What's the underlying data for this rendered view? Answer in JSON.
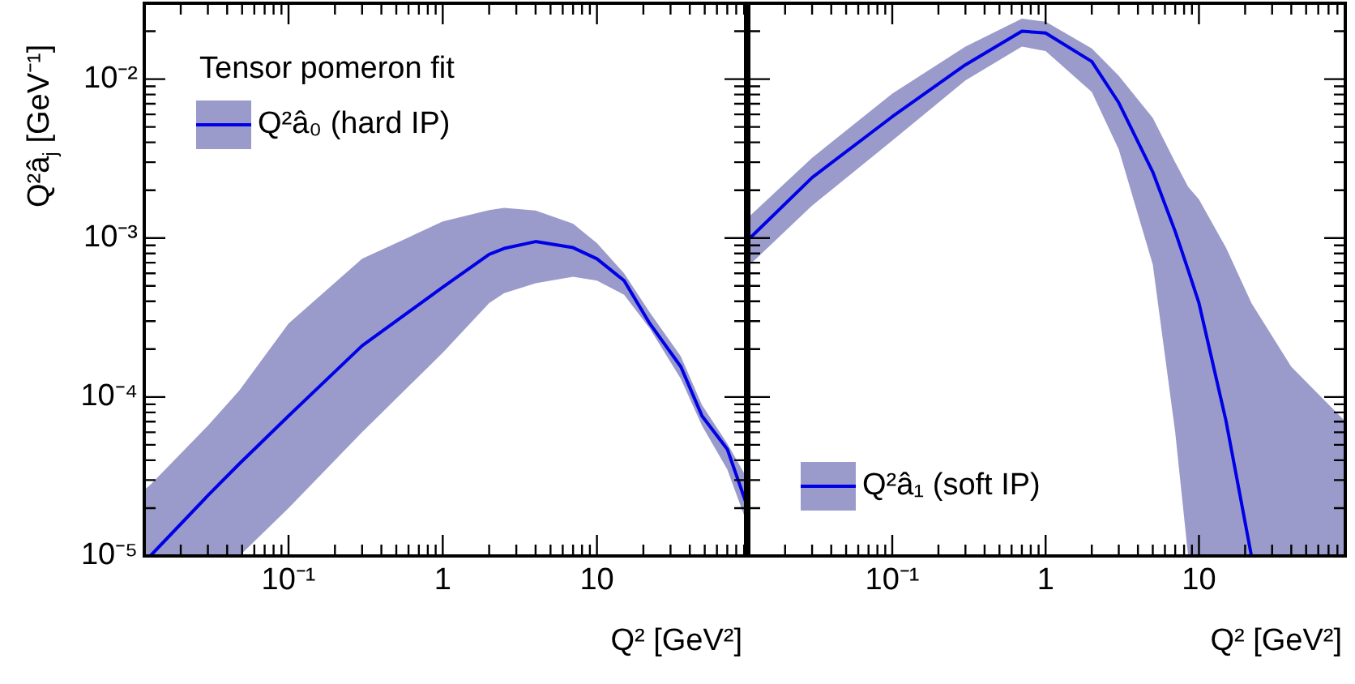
{
  "chart_data": [
    {
      "type": "line",
      "xlabel": "Q² [GeV²]",
      "ylabel": "Q²â$_{j}$ [GeV⁻¹]",
      "legend_title": "Tensor pomeron fit",
      "legend": "top left",
      "log": "xy",
      "grid": false,
      "marker": "none",
      "line_style": "solid",
      "xlim": [
        0.0116,
        92
      ],
      "ylim": [
        1e-05,
        0.03
      ],
      "xticks": [
        {
          "value": 0.02,
          "label": null
        },
        {
          "value": 0.03,
          "label": null
        },
        {
          "value": 0.04,
          "label": null
        },
        {
          "value": 0.05,
          "label": null
        },
        {
          "value": 0.06,
          "label": null
        },
        {
          "value": 0.07,
          "label": null
        },
        {
          "value": 0.08,
          "label": null
        },
        {
          "value": 0.09,
          "label": null
        },
        {
          "value": 0.1,
          "label": "10⁻¹"
        },
        {
          "value": 0.2,
          "label": null
        },
        {
          "value": 0.3,
          "label": null
        },
        {
          "value": 0.4,
          "label": null
        },
        {
          "value": 0.5,
          "label": null
        },
        {
          "value": 0.6,
          "label": null
        },
        {
          "value": 0.7,
          "label": null
        },
        {
          "value": 0.8,
          "label": null
        },
        {
          "value": 0.9,
          "label": null
        },
        {
          "value": 1,
          "label": "1"
        },
        {
          "value": 2,
          "label": null
        },
        {
          "value": 3,
          "label": null
        },
        {
          "value": 4,
          "label": null
        },
        {
          "value": 5,
          "label": null
        },
        {
          "value": 6,
          "label": null
        },
        {
          "value": 7,
          "label": null
        },
        {
          "value": 8,
          "label": null
        },
        {
          "value": 9,
          "label": null
        },
        {
          "value": 10,
          "label": "10"
        },
        {
          "value": 20,
          "label": null
        },
        {
          "value": 30,
          "label": null
        },
        {
          "value": 40,
          "label": null
        },
        {
          "value": 50,
          "label": null
        },
        {
          "value": 60,
          "label": null
        },
        {
          "value": 70,
          "label": null
        },
        {
          "value": 80,
          "label": null
        },
        {
          "value": 90,
          "label": null
        }
      ],
      "yticks": [
        {
          "value": 1e-05,
          "label": "10⁻⁵"
        },
        {
          "value": 2e-05,
          "label": null
        },
        {
          "value": 3e-05,
          "label": null
        },
        {
          "value": 4e-05,
          "label": null
        },
        {
          "value": 5e-05,
          "label": null
        },
        {
          "value": 6e-05,
          "label": null
        },
        {
          "value": 7e-05,
          "label": null
        },
        {
          "value": 8e-05,
          "label": null
        },
        {
          "value": 9e-05,
          "label": null
        },
        {
          "value": 0.0001,
          "label": "10⁻⁴"
        },
        {
          "value": 0.0002,
          "label": null
        },
        {
          "value": 0.0003,
          "label": null
        },
        {
          "value": 0.0004,
          "label": null
        },
        {
          "value": 0.0005,
          "label": null
        },
        {
          "value": 0.0006,
          "label": null
        },
        {
          "value": 0.0007,
          "label": null
        },
        {
          "value": 0.0008,
          "label": null
        },
        {
          "value": 0.0009,
          "label": null
        },
        {
          "value": 0.001,
          "label": "10⁻³"
        },
        {
          "value": 0.002,
          "label": null
        },
        {
          "value": 0.003,
          "label": null
        },
        {
          "value": 0.004,
          "label": null
        },
        {
          "value": 0.005,
          "label": null
        },
        {
          "value": 0.006,
          "label": null
        },
        {
          "value": 0.007,
          "label": null
        },
        {
          "value": 0.008,
          "label": null
        },
        {
          "value": 0.009,
          "label": null
        },
        {
          "value": 0.01,
          "label": "10⁻²"
        },
        {
          "value": 0.02,
          "label": null
        },
        {
          "value": 0.03,
          "label": null
        }
      ],
      "x": [
        0.0116,
        0.0127,
        0.03,
        0.048,
        0.1,
        0.3,
        1,
        2,
        2.5,
        4,
        7,
        10,
        15,
        22,
        35,
        48,
        70,
        92
      ],
      "series": [
        {
          "name": "Q²â₀ (hard IP)",
          "color": "#0000e6",
          "values": [
            null,
            1e-05,
            2.4e-05,
            3.8e-05,
            7.6e-05,
            0.00021,
            0.00049,
            0.00079,
            0.00086,
            0.00095,
            0.00087,
            0.00074,
            0.00054,
            0.00029,
            0.000155,
            7.6e-05,
            4.7e-05,
            2.2e-05
          ],
          "upper": [
            2.6e-05,
            2.8e-05,
            6.6e-05,
            0.00011,
            0.00029,
            0.00074,
            0.00127,
            0.0015,
            0.00155,
            0.00149,
            0.00123,
            0.00093,
            0.0006,
            0.00034,
            0.00018,
            8.9e-05,
            5.1e-05,
            3.2e-05
          ],
          "lower": [
            1e-05,
            1e-05,
            1e-05,
            1e-05,
            2e-05,
            6e-05,
            0.00019,
            0.00039,
            0.00045,
            0.00052,
            0.00057,
            0.00054,
            0.00044,
            0.00027,
            0.00013,
            6.6e-05,
            3.5e-05,
            1.7e-05
          ]
        }
      ]
    },
    {
      "type": "line",
      "xlabel": "Q² [GeV²]",
      "legend": "bottom left",
      "log": "xy",
      "grid": false,
      "marker": "none",
      "line_style": "solid",
      "tick_labels": "x",
      "xlim": [
        0.0116,
        90
      ],
      "ylim": [
        1e-05,
        0.03
      ],
      "xticks": [
        {
          "value": 0.02,
          "label": null
        },
        {
          "value": 0.03,
          "label": null
        },
        {
          "value": 0.04,
          "label": null
        },
        {
          "value": 0.05,
          "label": null
        },
        {
          "value": 0.06,
          "label": null
        },
        {
          "value": 0.07,
          "label": null
        },
        {
          "value": 0.08,
          "label": null
        },
        {
          "value": 0.09,
          "label": null
        },
        {
          "value": 0.1,
          "label": "10⁻¹"
        },
        {
          "value": 0.2,
          "label": null
        },
        {
          "value": 0.3,
          "label": null
        },
        {
          "value": 0.4,
          "label": null
        },
        {
          "value": 0.5,
          "label": null
        },
        {
          "value": 0.6,
          "label": null
        },
        {
          "value": 0.7,
          "label": null
        },
        {
          "value": 0.8,
          "label": null
        },
        {
          "value": 0.9,
          "label": null
        },
        {
          "value": 1,
          "label": "1"
        },
        {
          "value": 2,
          "label": null
        },
        {
          "value": 3,
          "label": null
        },
        {
          "value": 4,
          "label": null
        },
        {
          "value": 5,
          "label": null
        },
        {
          "value": 6,
          "label": null
        },
        {
          "value": 7,
          "label": null
        },
        {
          "value": 8,
          "label": null
        },
        {
          "value": 9,
          "label": null
        },
        {
          "value": 10,
          "label": "10"
        },
        {
          "value": 20,
          "label": null
        },
        {
          "value": 30,
          "label": null
        },
        {
          "value": 40,
          "label": null
        },
        {
          "value": 50,
          "label": null
        },
        {
          "value": 60,
          "label": null
        },
        {
          "value": 70,
          "label": null
        },
        {
          "value": 80,
          "label": null
        }
      ],
      "yticks": [
        {
          "value": 1e-05,
          "label": null
        },
        {
          "value": 2e-05,
          "label": null
        },
        {
          "value": 3e-05,
          "label": null
        },
        {
          "value": 4e-05,
          "label": null
        },
        {
          "value": 5e-05,
          "label": null
        },
        {
          "value": 6e-05,
          "label": null
        },
        {
          "value": 7e-05,
          "label": null
        },
        {
          "value": 8e-05,
          "label": null
        },
        {
          "value": 9e-05,
          "label": null
        },
        {
          "value": 0.0001,
          "label": null
        },
        {
          "value": 0.0002,
          "label": null
        },
        {
          "value": 0.0003,
          "label": null
        },
        {
          "value": 0.0004,
          "label": null
        },
        {
          "value": 0.0005,
          "label": null
        },
        {
          "value": 0.0006,
          "label": null
        },
        {
          "value": 0.0007,
          "label": null
        },
        {
          "value": 0.0008,
          "label": null
        },
        {
          "value": 0.0009,
          "label": null
        },
        {
          "value": 0.001,
          "label": null
        },
        {
          "value": 0.002,
          "label": null
        },
        {
          "value": 0.003,
          "label": null
        },
        {
          "value": 0.004,
          "label": null
        },
        {
          "value": 0.005,
          "label": null
        },
        {
          "value": 0.006,
          "label": null
        },
        {
          "value": 0.007,
          "label": null
        },
        {
          "value": 0.008,
          "label": null
        },
        {
          "value": 0.009,
          "label": null
        },
        {
          "value": 0.01,
          "label": null
        },
        {
          "value": 0.02,
          "label": null
        },
        {
          "value": 0.03,
          "label": null
        }
      ],
      "x": [
        0.0118,
        0.03,
        0.1,
        0.3,
        0.7,
        1,
        2,
        3,
        5,
        7,
        8.5,
        10,
        15,
        22,
        40,
        89
      ],
      "series": [
        {
          "name": "Q²â₁ (soft IP)",
          "color": "#0000e6",
          "values": [
            0.001,
            0.0024,
            0.0058,
            0.0123,
            0.02,
            0.0195,
            0.0129,
            0.0071,
            0.0026,
            0.0011,
            0.00063,
            0.00039,
            7.1e-05,
            1e-05,
            null,
            null
          ],
          "upper": [
            0.00138,
            0.0032,
            0.0081,
            0.016,
            0.024,
            0.023,
            0.0156,
            0.0105,
            0.0057,
            0.003,
            0.0021,
            0.00175,
            0.00087,
            0.00039,
            0.000155,
            7.1e-05
          ],
          "lower": [
            0.00068,
            0.0016,
            0.0041,
            0.0098,
            0.016,
            0.015,
            0.0083,
            0.0036,
            0.00068,
            6e-05,
            1e-05,
            1e-05,
            1e-05,
            1e-05,
            1e-05,
            1e-05
          ]
        }
      ]
    }
  ]
}
